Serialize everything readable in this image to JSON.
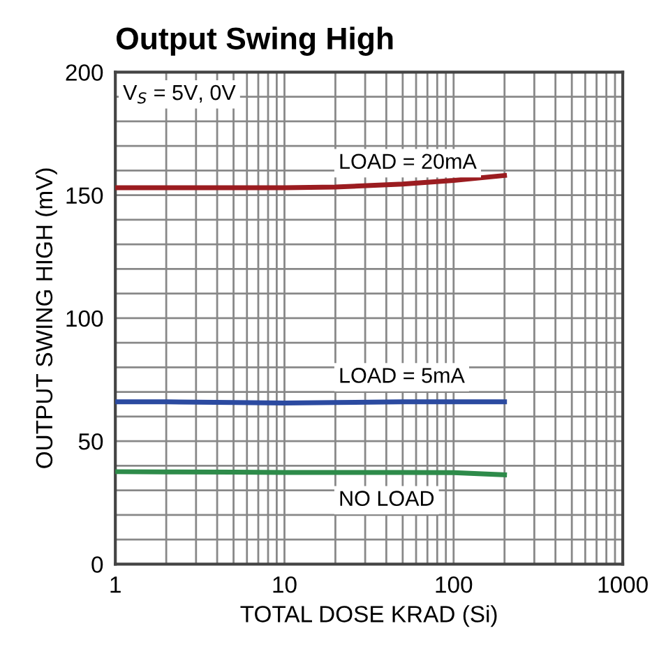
{
  "chart_data": {
    "type": "line",
    "title": "Output Swing High",
    "xlabel": "TOTAL DOSE KRAD (Si)",
    "ylabel": "OUTPUT SWING HIGH (mV)",
    "x": [
      1,
      2,
      5,
      10,
      20,
      50,
      100,
      200
    ],
    "series": [
      {
        "color": "#9b1c20",
        "values": [
          153,
          153,
          153,
          153,
          153.3,
          154.5,
          156,
          158
        ]
      },
      {
        "color": "#2b4aa0",
        "values": [
          66,
          66,
          65.7,
          65.5,
          65.7,
          66,
          66,
          66
        ]
      },
      {
        "color": "#2e8b4a",
        "values": [
          37.6,
          37.5,
          37.4,
          37.3,
          37.3,
          37.3,
          37.2,
          36.3
        ]
      }
    ],
    "annotations": [
      "V$_{S}$ = 5V, 0V",
      "LOAD = 20mA",
      "LOAD = 5mA",
      "NO LOAD"
    ],
    "log": "x",
    "xlim": [
      1,
      1000
    ],
    "xticks": [
      1,
      10,
      100,
      1000
    ],
    "ylim": [
      0,
      200
    ],
    "yticks": [
      0,
      50,
      100,
      150,
      200
    ],
    "grid": true
  }
}
